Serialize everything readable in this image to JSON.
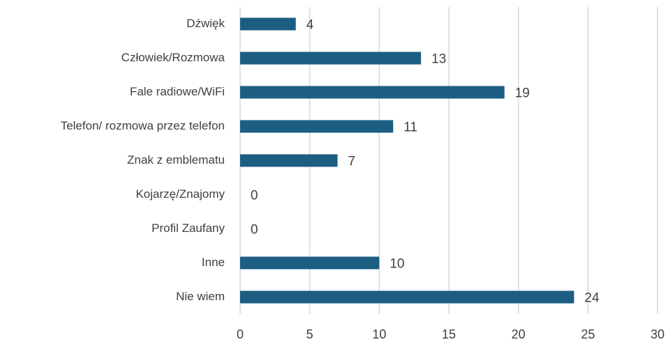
{
  "chart_data": {
    "type": "bar",
    "orientation": "horizontal",
    "categories": [
      "Dźwięk",
      "Człowiek/Rozmowa",
      "Fale radiowe/WiFi",
      "Telefon/ rozmowa przez telefon",
      "Znak z emblematu",
      "Kojarzę/Znajomy",
      "Profil Zaufany",
      "Inne",
      "Nie wiem"
    ],
    "values": [
      4,
      13,
      19,
      11,
      7,
      0,
      0,
      10,
      24
    ],
    "color": "#1b5e82",
    "xlim": [
      0,
      30
    ],
    "xticks": [
      0,
      5,
      10,
      15,
      20,
      25,
      30
    ],
    "grid": true
  }
}
